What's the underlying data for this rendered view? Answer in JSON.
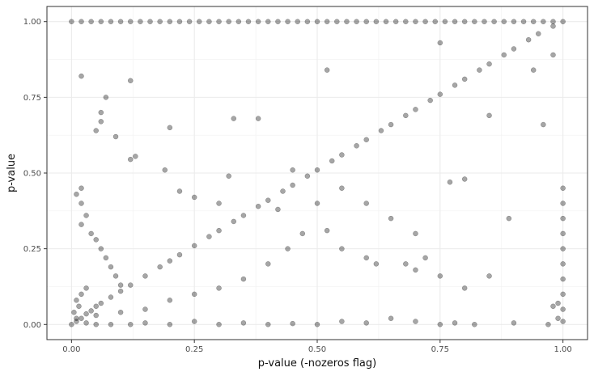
{
  "chart_data": {
    "type": "scatter",
    "title": "",
    "xlabel": "p-value (-nozeros flag)",
    "ylabel": "p-value",
    "xlim": [
      -0.05,
      1.05
    ],
    "ylim": [
      -0.05,
      1.05
    ],
    "x_ticks": [
      0.0,
      0.25,
      0.5,
      0.75,
      1.0
    ],
    "y_ticks": [
      0.0,
      0.25,
      0.5,
      0.75,
      1.0
    ],
    "x_tick_labels": [
      "0.00",
      "0.25",
      "0.50",
      "0.75",
      "1.00"
    ],
    "y_tick_labels": [
      "0.00",
      "0.25",
      "0.50",
      "0.75",
      "1.00"
    ],
    "grid": true,
    "point_color": "#000000",
    "point_opacity": 0.35,
    "theme": "bw",
    "series": [
      {
        "points": [
          [
            0.0,
            0.0
          ],
          [
            0.01,
            0.01
          ],
          [
            0.02,
            0.02
          ],
          [
            0.03,
            0.035
          ],
          [
            0.04,
            0.045
          ],
          [
            0.05,
            0.06
          ],
          [
            0.06,
            0.07
          ],
          [
            0.08,
            0.09
          ],
          [
            0.1,
            0.11
          ],
          [
            0.12,
            0.13
          ],
          [
            0.15,
            0.16
          ],
          [
            0.18,
            0.19
          ],
          [
            0.2,
            0.21
          ],
          [
            0.22,
            0.23
          ],
          [
            0.25,
            0.26
          ],
          [
            0.28,
            0.29
          ],
          [
            0.3,
            0.31
          ],
          [
            0.33,
            0.34
          ],
          [
            0.35,
            0.36
          ],
          [
            0.38,
            0.39
          ],
          [
            0.4,
            0.41
          ],
          [
            0.43,
            0.44
          ],
          [
            0.45,
            0.46
          ],
          [
            0.48,
            0.49
          ],
          [
            0.5,
            0.51
          ],
          [
            0.53,
            0.54
          ],
          [
            0.55,
            0.56
          ],
          [
            0.58,
            0.59
          ],
          [
            0.6,
            0.61
          ],
          [
            0.63,
            0.64
          ],
          [
            0.65,
            0.66
          ],
          [
            0.68,
            0.69
          ],
          [
            0.7,
            0.71
          ],
          [
            0.73,
            0.74
          ],
          [
            0.75,
            0.76
          ],
          [
            0.78,
            0.79
          ],
          [
            0.8,
            0.81
          ],
          [
            0.83,
            0.84
          ],
          [
            0.85,
            0.86
          ],
          [
            0.88,
            0.89
          ],
          [
            0.9,
            0.91
          ],
          [
            0.93,
            0.94
          ],
          [
            0.95,
            0.96
          ],
          [
            0.98,
            0.985
          ],
          [
            1.0,
            1.0
          ],
          [
            0.02,
            0.82
          ],
          [
            0.07,
            0.75
          ],
          [
            0.06,
            0.7
          ],
          [
            0.06,
            0.67
          ],
          [
            0.05,
            0.64
          ],
          [
            0.09,
            0.62
          ],
          [
            0.12,
            0.805
          ],
          [
            0.13,
            0.555
          ],
          [
            0.12,
            0.545
          ],
          [
            0.2,
            0.65
          ],
          [
            0.19,
            0.51
          ],
          [
            0.33,
            0.68
          ],
          [
            0.38,
            0.68
          ],
          [
            0.52,
            0.84
          ],
          [
            0.45,
            0.51
          ],
          [
            0.32,
            0.49
          ],
          [
            0.25,
            0.42
          ],
          [
            0.22,
            0.44
          ],
          [
            0.3,
            0.4
          ],
          [
            0.42,
            0.38
          ],
          [
            0.52,
            0.31
          ],
          [
            0.55,
            0.25
          ],
          [
            0.6,
            0.22
          ],
          [
            0.62,
            0.2
          ],
          [
            0.68,
            0.2
          ],
          [
            0.7,
            0.18
          ],
          [
            0.72,
            0.22
          ],
          [
            0.75,
            0.16
          ],
          [
            0.8,
            0.12
          ],
          [
            0.85,
            0.16
          ],
          [
            0.8,
            0.48
          ],
          [
            0.77,
            0.47
          ],
          [
            0.75,
            0.93
          ],
          [
            0.89,
            0.35
          ],
          [
            0.85,
            0.69
          ],
          [
            0.94,
            0.84
          ],
          [
            0.96,
            0.66
          ],
          [
            0.98,
            0.89
          ],
          [
            0.7,
            0.3
          ],
          [
            0.65,
            0.35
          ],
          [
            0.6,
            0.4
          ],
          [
            0.55,
            0.45
          ],
          [
            0.5,
            0.4
          ],
          [
            0.47,
            0.3
          ],
          [
            0.44,
            0.25
          ],
          [
            0.4,
            0.2
          ],
          [
            0.35,
            0.15
          ],
          [
            0.3,
            0.12
          ],
          [
            0.25,
            0.1
          ],
          [
            0.2,
            0.08
          ],
          [
            0.15,
            0.05
          ],
          [
            0.1,
            0.04
          ],
          [
            0.05,
            0.03
          ],
          [
            0.02,
            0.45
          ],
          [
            0.01,
            0.43
          ],
          [
            0.02,
            0.4
          ],
          [
            0.03,
            0.36
          ],
          [
            0.02,
            0.33
          ],
          [
            0.04,
            0.3
          ],
          [
            0.05,
            0.28
          ],
          [
            0.06,
            0.25
          ],
          [
            0.07,
            0.22
          ],
          [
            0.08,
            0.19
          ],
          [
            0.09,
            0.16
          ],
          [
            0.1,
            0.13
          ],
          [
            0.03,
            0.12
          ],
          [
            0.02,
            0.1
          ],
          [
            0.01,
            0.08
          ],
          [
            0.015,
            0.06
          ],
          [
            0.005,
            0.04
          ],
          [
            0.01,
            0.02
          ],
          [
            0.03,
            0.005
          ],
          [
            0.05,
            0.0
          ],
          [
            0.08,
            0.0
          ],
          [
            0.12,
            0.0
          ],
          [
            0.15,
            0.005
          ],
          [
            0.2,
            0.0
          ],
          [
            0.25,
            0.01
          ],
          [
            0.3,
            0.0
          ],
          [
            0.35,
            0.005
          ],
          [
            0.4,
            0.0
          ],
          [
            0.45,
            0.003
          ],
          [
            0.5,
            0.0
          ],
          [
            0.55,
            0.01
          ],
          [
            0.6,
            0.005
          ],
          [
            0.65,
            0.02
          ],
          [
            0.7,
            0.01
          ],
          [
            0.75,
            0.0
          ],
          [
            0.78,
            0.005
          ],
          [
            0.82,
            0.0
          ],
          [
            0.9,
            0.005
          ],
          [
            0.97,
            0.0
          ],
          [
            0.99,
            0.02
          ],
          [
            1.0,
            0.01
          ],
          [
            1.0,
            0.05
          ],
          [
            1.0,
            0.1
          ],
          [
            1.0,
            0.15
          ],
          [
            1.0,
            0.2
          ],
          [
            1.0,
            0.25
          ],
          [
            1.0,
            0.3
          ],
          [
            1.0,
            0.35
          ],
          [
            1.0,
            0.4
          ],
          [
            1.0,
            0.45
          ],
          [
            0.99,
            0.07
          ],
          [
            0.98,
            0.06
          ],
          [
            0.0,
            1.0
          ],
          [
            0.02,
            1.0
          ],
          [
            0.04,
            1.0
          ],
          [
            0.06,
            1.0
          ],
          [
            0.08,
            1.0
          ],
          [
            0.1,
            1.0
          ],
          [
            0.12,
            1.0
          ],
          [
            0.14,
            1.0
          ],
          [
            0.16,
            1.0
          ],
          [
            0.18,
            1.0
          ],
          [
            0.2,
            1.0
          ],
          [
            0.22,
            1.0
          ],
          [
            0.24,
            1.0
          ],
          [
            0.26,
            1.0
          ],
          [
            0.28,
            1.0
          ],
          [
            0.3,
            1.0
          ],
          [
            0.32,
            1.0
          ],
          [
            0.34,
            1.0
          ],
          [
            0.36,
            1.0
          ],
          [
            0.38,
            1.0
          ],
          [
            0.4,
            1.0
          ],
          [
            0.42,
            1.0
          ],
          [
            0.44,
            1.0
          ],
          [
            0.46,
            1.0
          ],
          [
            0.48,
            1.0
          ],
          [
            0.5,
            1.0
          ],
          [
            0.52,
            1.0
          ],
          [
            0.54,
            1.0
          ],
          [
            0.56,
            1.0
          ],
          [
            0.58,
            1.0
          ],
          [
            0.6,
            1.0
          ],
          [
            0.62,
            1.0
          ],
          [
            0.64,
            1.0
          ],
          [
            0.66,
            1.0
          ],
          [
            0.68,
            1.0
          ],
          [
            0.7,
            1.0
          ],
          [
            0.72,
            1.0
          ],
          [
            0.74,
            1.0
          ],
          [
            0.76,
            1.0
          ],
          [
            0.78,
            1.0
          ],
          [
            0.8,
            1.0
          ],
          [
            0.82,
            1.0
          ],
          [
            0.84,
            1.0
          ],
          [
            0.86,
            1.0
          ],
          [
            0.88,
            1.0
          ],
          [
            0.9,
            1.0
          ],
          [
            0.92,
            1.0
          ],
          [
            0.94,
            1.0
          ],
          [
            0.96,
            1.0
          ],
          [
            0.98,
            1.0
          ]
        ]
      }
    ]
  }
}
